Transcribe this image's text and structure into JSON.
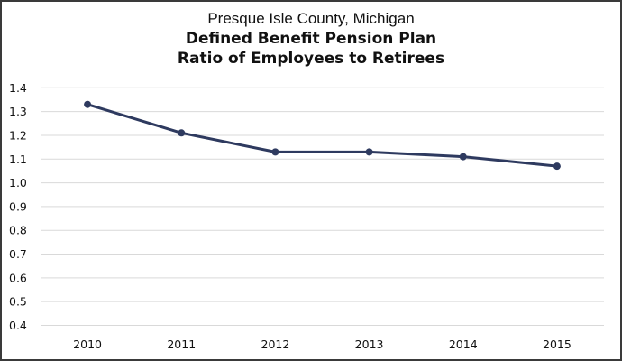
{
  "chart_data": {
    "type": "line",
    "title": "Presque Isle County, Michigan",
    "subtitle_lines": [
      "Defined Benefit Pension Plan",
      "Ratio of Employees to Retirees"
    ],
    "xlabel": "",
    "ylabel": "",
    "categories": [
      "2010",
      "2011",
      "2012",
      "2013",
      "2014",
      "2015"
    ],
    "series": [
      {
        "name": "Ratio of Employees to Retirees",
        "values": [
          1.33,
          1.21,
          1.13,
          1.13,
          1.11,
          1.07
        ],
        "color": "#2e3a5f"
      }
    ],
    "ylim": [
      0.4,
      1.4
    ],
    "yticks": [
      "0.4",
      "0.5",
      "0.6",
      "0.7",
      "0.8",
      "0.9",
      "1.0",
      "1.1",
      "1.2",
      "1.3",
      "1.4"
    ],
    "grid": true,
    "legend": "none"
  }
}
